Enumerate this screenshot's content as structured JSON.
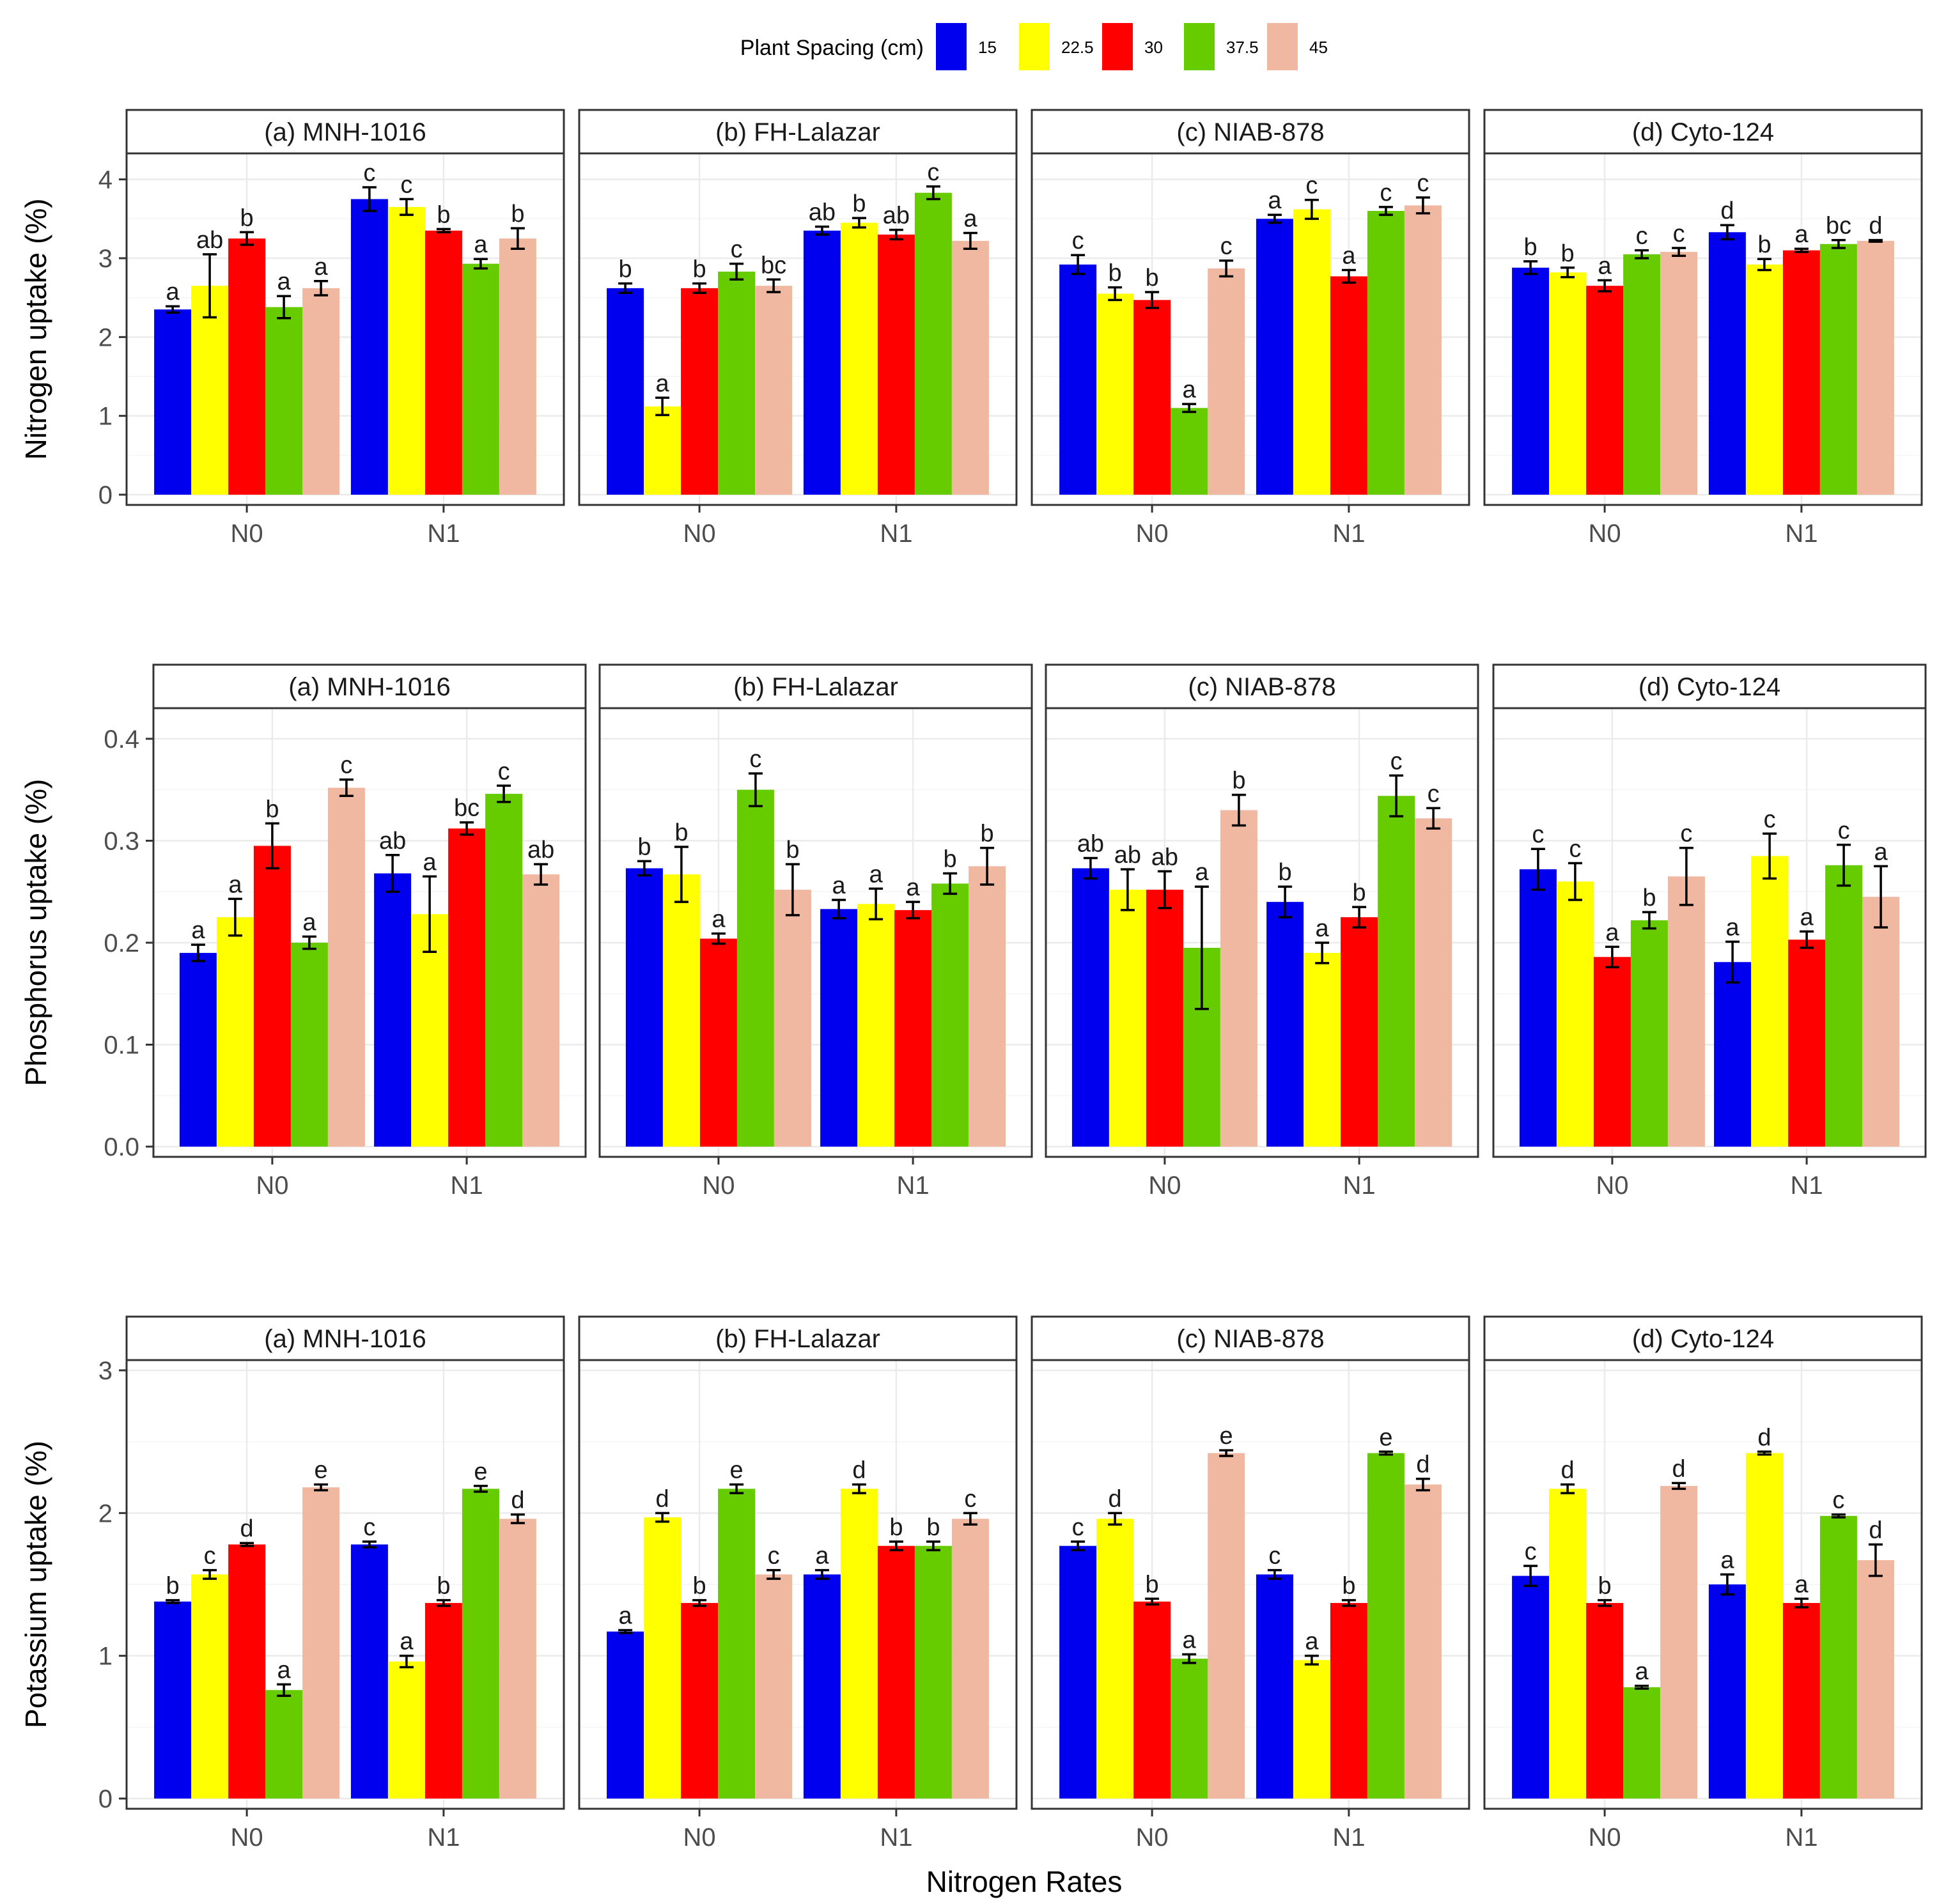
{
  "legend": {
    "title": "Plant Spacing (cm)",
    "items": [
      {
        "label": "15",
        "color": "#0000ee"
      },
      {
        "label": "22.5",
        "color": "#ffff00"
      },
      {
        "label": "30",
        "color": "#ff0000"
      },
      {
        "label": "37.5",
        "color": "#66cc00"
      },
      {
        "label": "45",
        "color": "#f0b8a0"
      }
    ]
  },
  "x_title": "Nitrogen Rates",
  "chart_data": [
    {
      "type": "bar",
      "ylabel": "Nitrogen uptake (%)",
      "ylim": [
        0,
        4.2
      ],
      "yticks": [
        "0",
        "1",
        "2",
        "3",
        "4"
      ],
      "ytick_values": [
        0,
        1,
        2,
        3,
        4
      ],
      "categories": [
        "N0",
        "N1"
      ],
      "panels": [
        {
          "title": "(a) MNH-1016",
          "values": [
            [
              2.35,
              2.65,
              3.25,
              2.38,
              2.62
            ],
            [
              3.75,
              3.65,
              3.35,
              2.93,
              3.25
            ]
          ],
          "errors": [
            [
              0.04,
              0.4,
              0.08,
              0.14,
              0.09
            ],
            [
              0.15,
              0.1,
              0.02,
              0.06,
              0.13
            ]
          ],
          "letters": [
            [
              "a",
              "ab",
              "b",
              "a",
              "a"
            ],
            [
              "c",
              "c",
              "b",
              "a",
              "b"
            ]
          ]
        },
        {
          "title": "(b) FH-Lalazar",
          "values": [
            [
              2.62,
              1.12,
              2.62,
              2.83,
              2.65
            ],
            [
              3.35,
              3.45,
              3.3,
              3.83,
              3.22
            ]
          ],
          "errors": [
            [
              0.06,
              0.11,
              0.06,
              0.1,
              0.08
            ],
            [
              0.05,
              0.06,
              0.06,
              0.08,
              0.1
            ]
          ],
          "letters": [
            [
              "b",
              "a",
              "b",
              "c",
              "bc"
            ],
            [
              "ab",
              "b",
              "ab",
              "c",
              "a"
            ]
          ]
        },
        {
          "title": "(c) NIAB-878",
          "values": [
            [
              2.92,
              2.55,
              2.47,
              1.1,
              2.87
            ],
            [
              3.5,
              3.62,
              2.77,
              3.6,
              3.67
            ]
          ],
          "errors": [
            [
              0.12,
              0.08,
              0.1,
              0.05,
              0.1
            ],
            [
              0.05,
              0.12,
              0.08,
              0.05,
              0.1
            ]
          ],
          "letters": [
            [
              "c",
              "b",
              "b",
              "a",
              "c"
            ],
            [
              "a",
              "c",
              "a",
              "c",
              "c"
            ]
          ]
        },
        {
          "title": "(d) Cyto-124",
          "values": [
            [
              2.88,
              2.82,
              2.65,
              3.05,
              3.08
            ],
            [
              3.33,
              2.92,
              3.1,
              3.18,
              3.22
            ]
          ],
          "errors": [
            [
              0.08,
              0.06,
              0.07,
              0.05,
              0.05
            ],
            [
              0.09,
              0.07,
              0.02,
              0.05,
              0.01
            ]
          ],
          "letters": [
            [
              "b",
              "b",
              "a",
              "c",
              "c"
            ],
            [
              "d",
              "b",
              "a",
              "bc",
              "d"
            ]
          ]
        }
      ]
    },
    {
      "type": "bar",
      "ylabel": "Phosphorus uptake (%)",
      "ylim": [
        0,
        0.42
      ],
      "yticks": [
        "0.0",
        "0.1",
        "0.2",
        "0.3",
        "0.4"
      ],
      "ytick_values": [
        0,
        0.1,
        0.2,
        0.3,
        0.4
      ],
      "categories": [
        "N0",
        "N1"
      ],
      "panels": [
        {
          "title": "(a) MNH-1016",
          "values": [
            [
              0.19,
              0.225,
              0.295,
              0.2,
              0.352
            ],
            [
              0.268,
              0.228,
              0.312,
              0.346,
              0.267
            ]
          ],
          "errors": [
            [
              0.008,
              0.018,
              0.022,
              0.006,
              0.008
            ],
            [
              0.018,
              0.037,
              0.006,
              0.008,
              0.01
            ]
          ],
          "letters": [
            [
              "a",
              "a",
              "b",
              "a",
              "c"
            ],
            [
              "ab",
              "a",
              "bc",
              "c",
              "ab"
            ]
          ]
        },
        {
          "title": "(b) FH-Lalazar",
          "values": [
            [
              0.273,
              0.267,
              0.204,
              0.35,
              0.252
            ],
            [
              0.233,
              0.238,
              0.232,
              0.258,
              0.275
            ]
          ],
          "errors": [
            [
              0.007,
              0.027,
              0.005,
              0.016,
              0.025
            ],
            [
              0.009,
              0.015,
              0.008,
              0.01,
              0.018
            ]
          ],
          "letters": [
            [
              "b",
              "b",
              "a",
              "c",
              "b"
            ],
            [
              "a",
              "a",
              "a",
              "b",
              "b"
            ]
          ]
        },
        {
          "title": "(c) NIAB-878",
          "values": [
            [
              0.273,
              0.252,
              0.252,
              0.195,
              0.33
            ],
            [
              0.24,
              0.19,
              0.225,
              0.344,
              0.322
            ]
          ],
          "errors": [
            [
              0.01,
              0.02,
              0.018,
              0.06,
              0.015
            ],
            [
              0.015,
              0.01,
              0.01,
              0.02,
              0.01
            ]
          ],
          "letters": [
            [
              "ab",
              "ab",
              "ab",
              "a",
              "b"
            ],
            [
              "b",
              "a",
              "b",
              "c",
              "c"
            ]
          ]
        },
        {
          "title": "(d) Cyto-124",
          "values": [
            [
              0.272,
              0.26,
              0.186,
              0.222,
              0.265
            ],
            [
              0.181,
              0.285,
              0.203,
              0.276,
              0.245
            ]
          ],
          "errors": [
            [
              0.02,
              0.018,
              0.01,
              0.008,
              0.028
            ],
            [
              0.02,
              0.022,
              0.008,
              0.02,
              0.03
            ]
          ],
          "letters": [
            [
              "c",
              "c",
              "a",
              "b",
              "c"
            ],
            [
              "a",
              "c",
              "a",
              "c",
              "a"
            ]
          ]
        }
      ]
    },
    {
      "type": "bar",
      "ylabel": "Potassium uptake (%)",
      "ylim": [
        0,
        3.0
      ],
      "yticks": [
        "0",
        "1",
        "2",
        "3"
      ],
      "ytick_values": [
        0,
        1,
        2,
        3
      ],
      "categories": [
        "N0",
        "N1"
      ],
      "panels": [
        {
          "title": "(a) MNH-1016",
          "values": [
            [
              1.38,
              1.57,
              1.78,
              0.76,
              2.18
            ],
            [
              1.78,
              0.96,
              1.37,
              2.17,
              1.96
            ]
          ],
          "errors": [
            [
              0.01,
              0.03,
              0.01,
              0.04,
              0.02
            ],
            [
              0.02,
              0.04,
              0.02,
              0.02,
              0.03
            ]
          ],
          "letters": [
            [
              "b",
              "c",
              "d",
              "a",
              "e"
            ],
            [
              "c",
              "a",
              "b",
              "e",
              "d"
            ]
          ]
        },
        {
          "title": "(b) FH-Lalazar",
          "values": [
            [
              1.17,
              1.97,
              1.37,
              2.17,
              1.57
            ],
            [
              1.57,
              2.17,
              1.77,
              1.77,
              1.96
            ]
          ],
          "errors": [
            [
              0.01,
              0.03,
              0.02,
              0.03,
              0.03
            ],
            [
              0.03,
              0.03,
              0.03,
              0.03,
              0.04
            ]
          ],
          "letters": [
            [
              "a",
              "d",
              "b",
              "e",
              "c"
            ],
            [
              "a",
              "d",
              "b",
              "b",
              "c"
            ]
          ]
        },
        {
          "title": "(c) NIAB-878",
          "values": [
            [
              1.77,
              1.96,
              1.38,
              0.98,
              2.42
            ],
            [
              1.57,
              0.97,
              1.37,
              2.42,
              2.2
            ]
          ],
          "errors": [
            [
              0.03,
              0.04,
              0.02,
              0.03,
              0.02
            ],
            [
              0.03,
              0.03,
              0.02,
              0.01,
              0.04
            ]
          ],
          "letters": [
            [
              "c",
              "d",
              "b",
              "a",
              "e"
            ],
            [
              "c",
              "a",
              "b",
              "e",
              "d"
            ]
          ]
        },
        {
          "title": "(d) Cyto-124",
          "values": [
            [
              1.56,
              2.17,
              1.37,
              0.78,
              2.19
            ],
            [
              1.5,
              2.42,
              1.37,
              1.98,
              1.67
            ]
          ],
          "errors": [
            [
              0.07,
              0.03,
              0.02,
              0.01,
              0.02
            ],
            [
              0.07,
              0.01,
              0.03,
              0.01,
              0.11
            ]
          ],
          "letters": [
            [
              "c",
              "d",
              "b",
              "a",
              "d"
            ],
            [
              "a",
              "d",
              "a",
              "c",
              "d"
            ]
          ]
        }
      ]
    }
  ]
}
